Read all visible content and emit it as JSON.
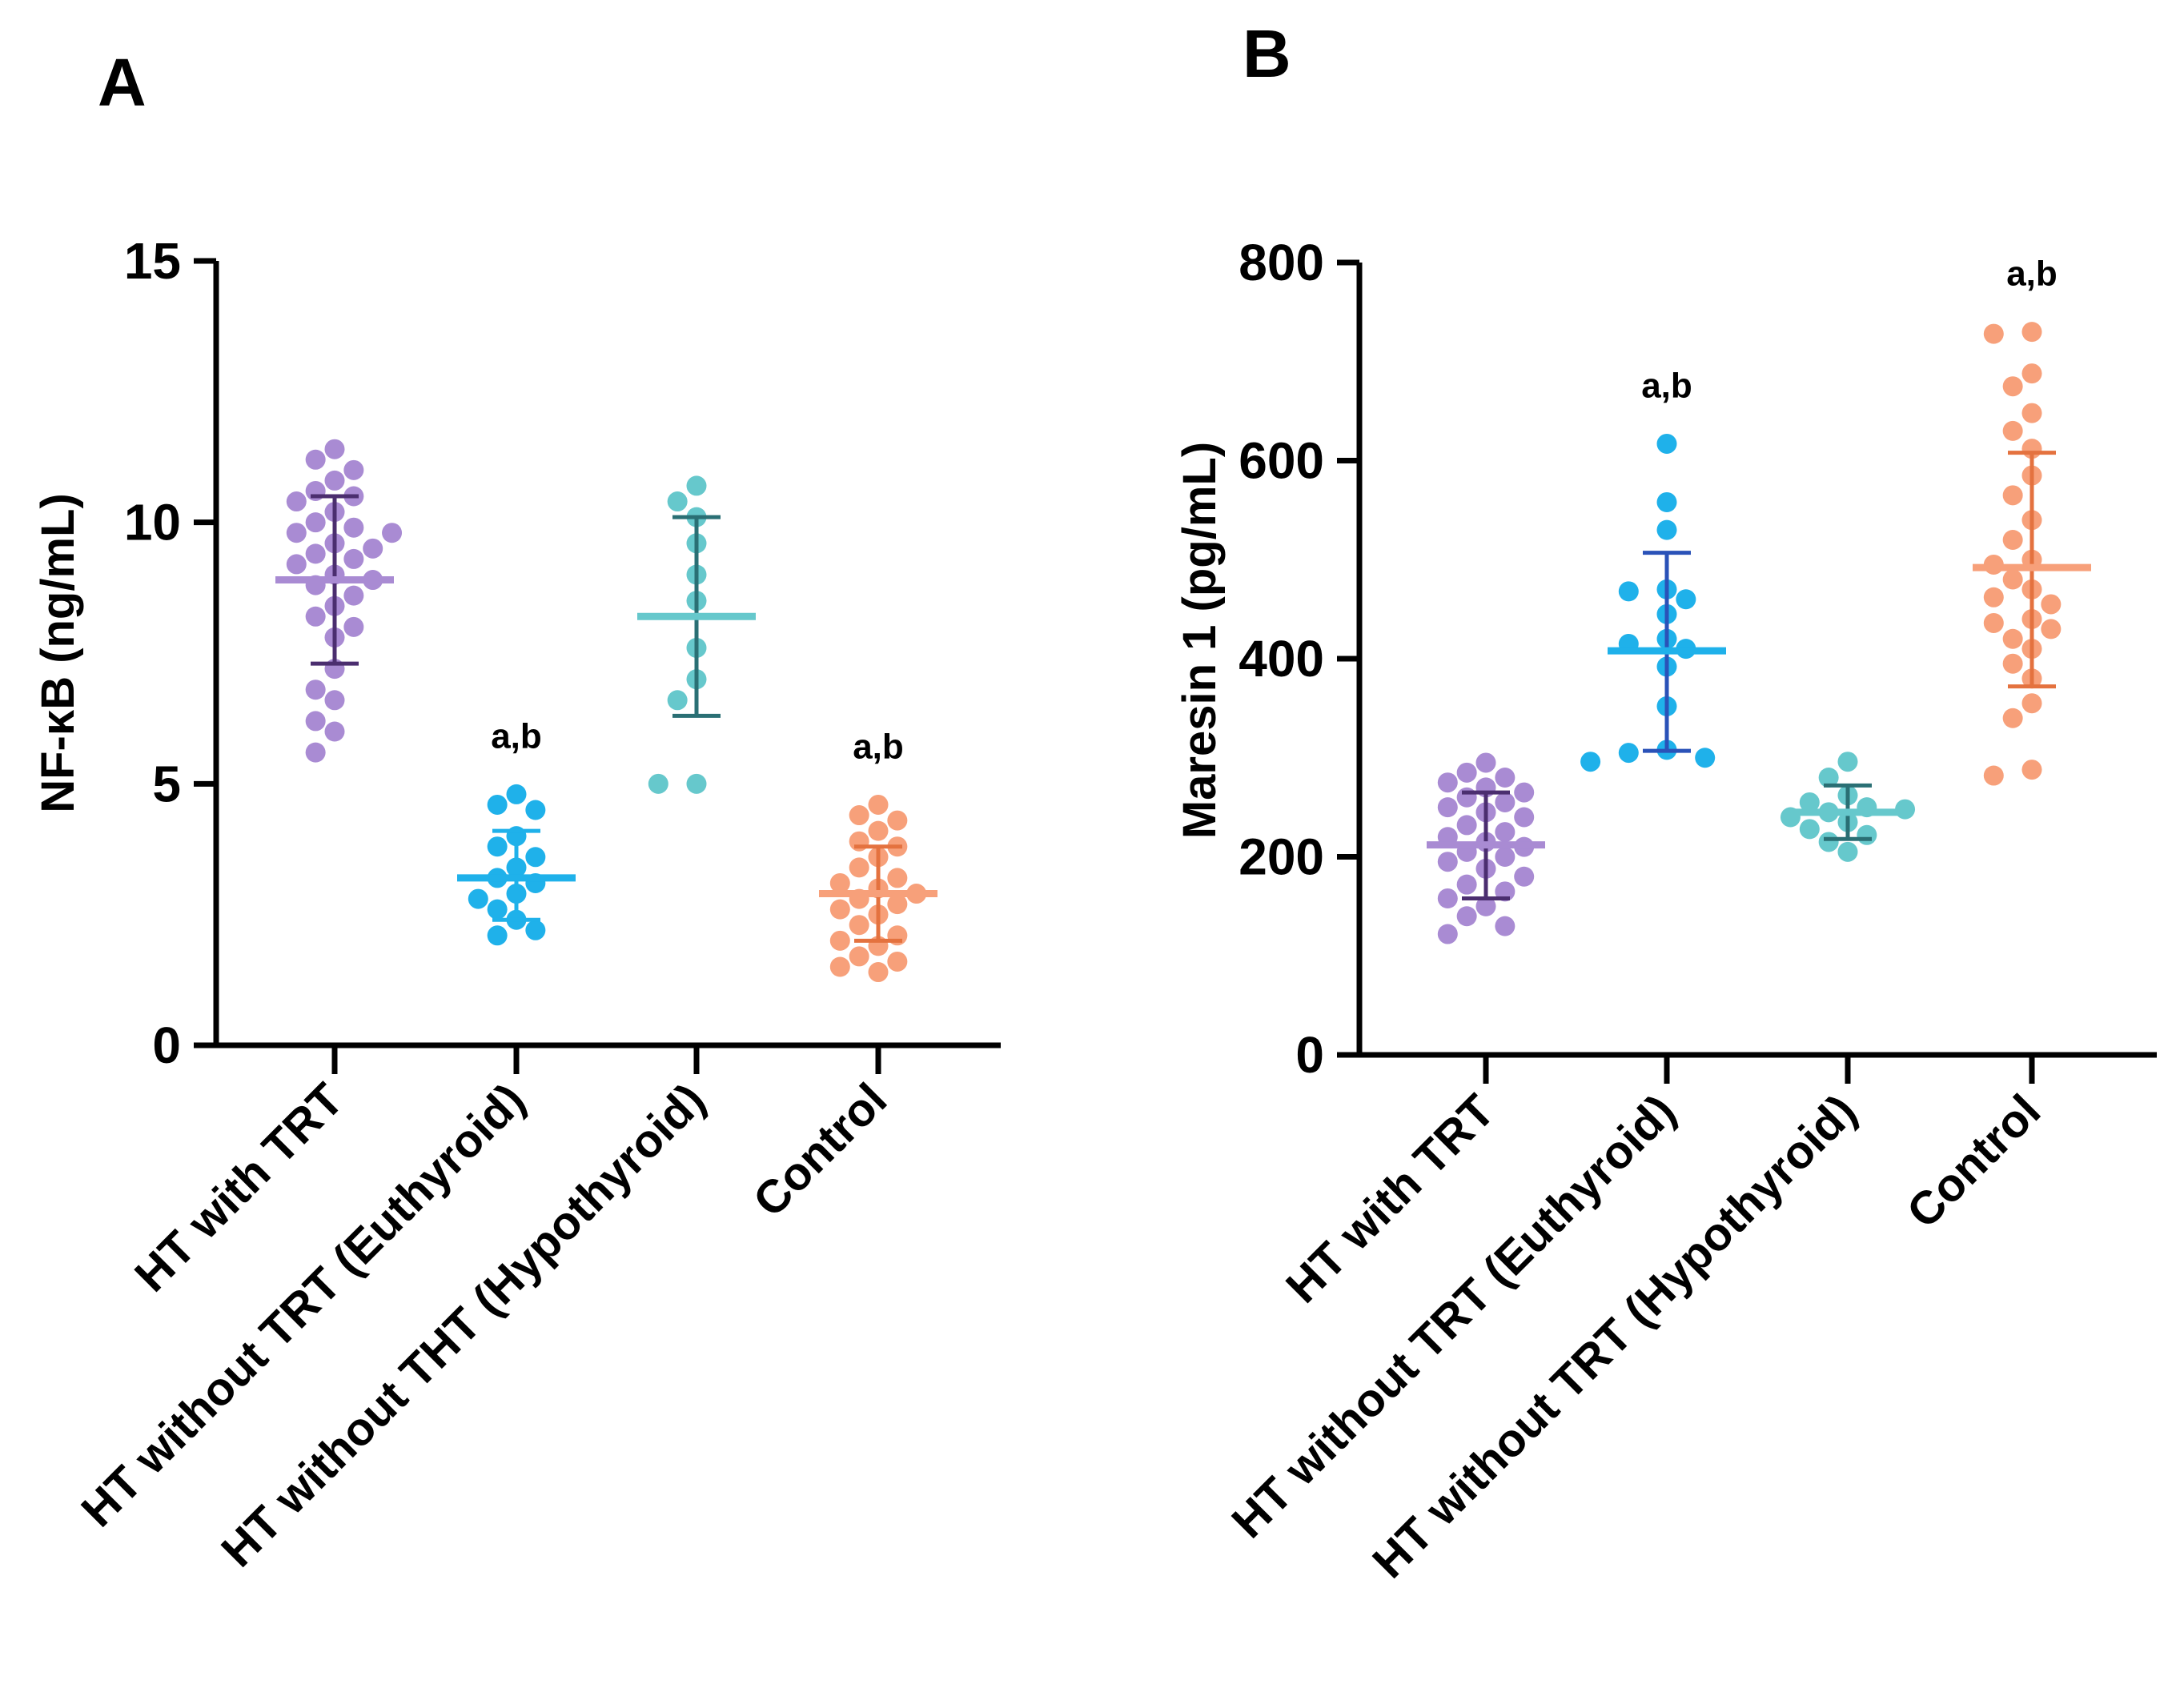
{
  "chart_data": [
    {
      "panel": "A",
      "type": "scatter",
      "title": "",
      "ylabel": "NF-κB (ng/mL)",
      "xlabel": "",
      "ylim": [
        0,
        15
      ],
      "yticks": [
        "0",
        "5",
        "10",
        "15"
      ],
      "grid": false,
      "categories": [
        "HT with TRT",
        "HT without TRT (Euthyroid)",
        "HT without THT (Hypothyroid)",
        "Control"
      ],
      "groups": [
        {
          "color": "#a98bd3",
          "errcolor": "#4b2e6f",
          "mean": 8.9,
          "sd_low": 7.3,
          "sd_high": 10.5,
          "annotation": "",
          "points": [
            11.4,
            11.2,
            11.0,
            10.8,
            10.6,
            10.5,
            10.4,
            10.2,
            10.0,
            9.9,
            9.8,
            9.8,
            9.6,
            9.5,
            9.4,
            9.3,
            9.2,
            9.0,
            8.9,
            8.8,
            8.6,
            8.4,
            8.2,
            8.0,
            7.8,
            7.2,
            6.8,
            6.6,
            6.2,
            6.0,
            5.6
          ]
        },
        {
          "color": "#1fb1ea",
          "errcolor": "#1fb1ea",
          "mean": 3.2,
          "sd_low": 2.4,
          "sd_high": 4.1,
          "annotation": "a,b",
          "points": [
            4.8,
            4.6,
            4.5,
            4.0,
            3.8,
            3.6,
            3.4,
            3.2,
            3.1,
            2.9,
            2.8,
            2.6,
            2.4,
            2.2,
            2.1
          ]
        },
        {
          "color": "#66c8cc",
          "errcolor": "#2a6f74",
          "mean": 8.2,
          "sd_low": 6.3,
          "sd_high": 10.1,
          "annotation": "",
          "points": [
            10.7,
            10.4,
            10.1,
            9.6,
            9.0,
            8.5,
            7.6,
            7.0,
            6.6,
            5.0,
            5.0
          ]
        },
        {
          "color": "#f7a07a",
          "errcolor": "#e4723f",
          "mean": 2.9,
          "sd_low": 2.0,
          "sd_high": 3.8,
          "annotation": "a,b",
          "points": [
            4.6,
            4.4,
            4.3,
            4.1,
            3.9,
            3.8,
            3.6,
            3.4,
            3.2,
            3.1,
            3.0,
            2.9,
            2.8,
            2.7,
            2.6,
            2.5,
            2.3,
            2.1,
            2.0,
            1.9,
            1.7,
            1.6,
            1.5,
            1.4
          ]
        }
      ]
    },
    {
      "panel": "B",
      "type": "scatter",
      "title": "",
      "ylabel": "Maresin 1 (pg/mL)",
      "xlabel": "",
      "ylim": [
        0,
        800
      ],
      "yticks": [
        "0",
        "200",
        "400",
        "600",
        "800"
      ],
      "grid": false,
      "categories": [
        "HT with TRT",
        "HT without TRT (Euthyroid)",
        "HT without TRT (Hypothyroid)",
        "Control"
      ],
      "groups": [
        {
          "color": "#a98bd3",
          "errcolor": "#4b2e6f",
          "mean": 212,
          "sd_low": 158,
          "sd_high": 265,
          "annotation": "",
          "points": [
            295,
            285,
            280,
            275,
            270,
            265,
            260,
            255,
            250,
            245,
            240,
            232,
            225,
            220,
            215,
            210,
            205,
            200,
            195,
            188,
            180,
            172,
            165,
            158,
            150,
            140,
            130,
            122
          ]
        },
        {
          "color": "#1fb1ea",
          "errcolor": "#2a52b8",
          "mean": 408,
          "sd_low": 307,
          "sd_high": 507,
          "annotation": "a,b",
          "points": [
            617,
            558,
            530,
            470,
            468,
            460,
            445,
            420,
            415,
            410,
            392,
            352,
            308,
            305,
            300,
            296
          ]
        },
        {
          "color": "#66c8cc",
          "errcolor": "#2a6f74",
          "mean": 245,
          "sd_low": 218,
          "sd_high": 272,
          "annotation": "",
          "points": [
            296,
            280,
            262,
            255,
            250,
            248,
            245,
            240,
            235,
            228,
            222,
            215,
            205
          ]
        },
        {
          "color": "#f7a07a",
          "errcolor": "#e4723f",
          "mean": 492,
          "sd_low": 372,
          "sd_high": 608,
          "annotation": "a,b",
          "points": [
            730,
            728,
            688,
            675,
            648,
            630,
            612,
            585,
            565,
            540,
            520,
            500,
            495,
            480,
            470,
            462,
            455,
            440,
            436,
            430,
            420,
            410,
            395,
            380,
            355,
            340,
            288,
            282
          ]
        }
      ]
    }
  ]
}
